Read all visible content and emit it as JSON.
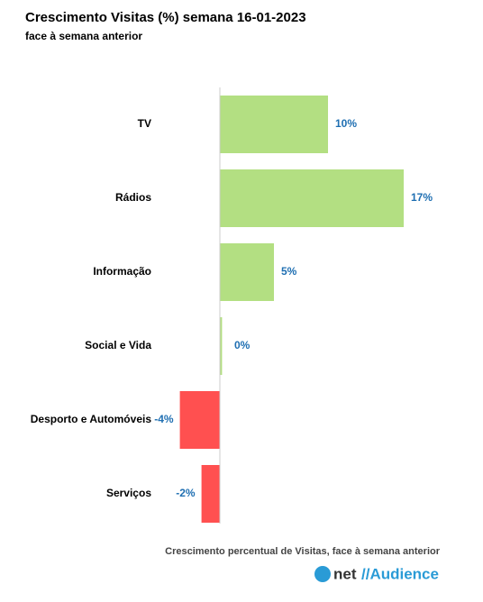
{
  "chart_data": {
    "type": "hbar",
    "title": "Crescimento Visitas (%) semana 16-01-2023",
    "subtitle": "face à semana anterior",
    "x_label": "Crescimento percentual de Visitas, face à semana anterior",
    "categories": [
      "TV",
      "Rádios",
      "Informação",
      "Social e Vida",
      "Desporto e Automóveis",
      "Serviços"
    ],
    "values": [
      10,
      17,
      5,
      0.2,
      -3.7,
      -1.7
    ],
    "value_labels": [
      "10%",
      "17%",
      "5%",
      "0%",
      "-4%",
      "-2%"
    ],
    "positive_color": "#b3df82",
    "negative_color": "#ff5050",
    "xlim": [
      -5,
      19
    ]
  },
  "logo": {
    "left": "net",
    "right": "//Audience"
  }
}
